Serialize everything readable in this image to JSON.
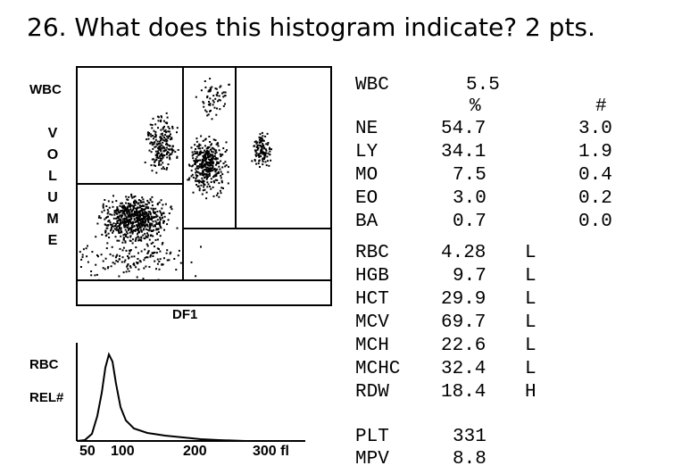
{
  "question": "26. What does this histogram indicate? 2 pts.",
  "scatter": {
    "y_label": "WBC",
    "volume_letters": [
      "V",
      "O",
      "L",
      "U",
      "M",
      "E"
    ],
    "x_label": "DF1"
  },
  "rbc_hist": {
    "label_top": "RBC",
    "label_bottom": "REL#",
    "ticks": [
      "50",
      "100",
      "200",
      "300 fl"
    ]
  },
  "results": {
    "wbc": {
      "name": "WBC",
      "value": "5.5"
    },
    "pct_header": "%",
    "abs_header": "#",
    "diff": [
      {
        "name": "NE",
        "pct": "54.7",
        "abs": "3.0"
      },
      {
        "name": "LY",
        "pct": "34.1",
        "abs": "1.9"
      },
      {
        "name": "MO",
        "pct": "7.5",
        "abs": "0.4"
      },
      {
        "name": "EO",
        "pct": "3.0",
        "abs": "0.2"
      },
      {
        "name": "BA",
        "pct": "0.7",
        "abs": "0.0"
      }
    ],
    "rbc_params": [
      {
        "name": "RBC",
        "value": "4.28",
        "flag": "L"
      },
      {
        "name": "HGB",
        "value": "9.7",
        "flag": "L"
      },
      {
        "name": "HCT",
        "value": "29.9",
        "flag": "L"
      },
      {
        "name": "MCV",
        "value": "69.7",
        "flag": "L"
      },
      {
        "name": "MCH",
        "value": "22.6",
        "flag": "L"
      },
      {
        "name": "MCHC",
        "value": "32.4",
        "flag": "L"
      },
      {
        "name": "RDW",
        "value": "18.4",
        "flag": "H"
      }
    ],
    "plt": {
      "name": "PLT",
      "value": "331"
    },
    "mpv": {
      "name": "MPV",
      "value": "8.8"
    }
  }
}
